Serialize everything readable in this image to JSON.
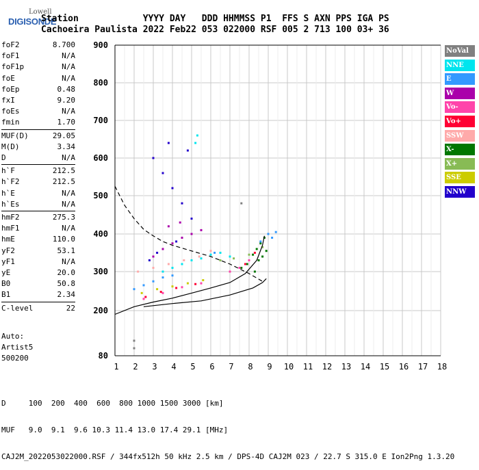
{
  "header": {
    "logo_top": "Lowell",
    "logo_bottom": "DIGISONDE",
    "line1": "Station            YYYY DAY   DDD HHMMSS P1  FFS S AXN PPS IGA PS",
    "line2": "Cachoeira Paulista 2022 Feb22 053 022000 RSF 005 2 713 100 03+ 36"
  },
  "params": {
    "group1": [
      {
        "label": "foF2",
        "value": "8.700"
      },
      {
        "label": "foF1",
        "value": "N/A"
      },
      {
        "label": "foF1p",
        "value": "N/A"
      },
      {
        "label": "foE",
        "value": "N/A"
      },
      {
        "label": "foEp",
        "value": "0.48"
      },
      {
        "label": "fxI",
        "value": "9.20"
      },
      {
        "label": "foEs",
        "value": "N/A"
      },
      {
        "label": "fmin",
        "value": "1.70"
      }
    ],
    "group2": [
      {
        "label": "MUF(D)",
        "value": "29.05"
      },
      {
        "label": "M(D)",
        "value": "3.34"
      },
      {
        "label": "D",
        "value": "N/A"
      }
    ],
    "group3": [
      {
        "label": "h`F",
        "value": "212.5"
      },
      {
        "label": "h`F2",
        "value": "212.5"
      },
      {
        "label": "h`E",
        "value": "N/A"
      },
      {
        "label": "h`Es",
        "value": "N/A"
      }
    ],
    "group4": [
      {
        "label": "hmF2",
        "value": "275.3"
      },
      {
        "label": "hmF1",
        "value": "N/A"
      },
      {
        "label": "hmE",
        "value": "110.0"
      },
      {
        "label": "yF2",
        "value": "53.1"
      },
      {
        "label": "yF1",
        "value": "N/A"
      },
      {
        "label": "yE",
        "value": "20.0"
      },
      {
        "label": "B0",
        "value": "50.8"
      },
      {
        "label": "B1",
        "value": "2.34"
      }
    ],
    "group5": [
      {
        "label": "C-level",
        "value": "22"
      }
    ]
  },
  "auto": {
    "line1": "Auto:",
    "line2": "Artist5",
    "line3": "500200"
  },
  "footer": {
    "line1": "D     100  200  400  600  800 1000 1500 3000 [km]",
    "line2": "MUF   9.0  9.1  9.6 10.3 11.4 13.0 17.4 29.1 [MHz]",
    "line3": "CAJ2M_2022053022000.RSF / 344fx512h 50 kHz 2.5 km / DPS-4D CAJ2M 023 / 22.7 S 315.0 E Ion2Png 1.3.20"
  },
  "legend": [
    {
      "label": "NoVal",
      "color": "#808080"
    },
    {
      "label": "NNE",
      "color": "#00e5ee"
    },
    {
      "label": "E",
      "color": "#3399ff"
    },
    {
      "label": "W",
      "color": "#aa00aa"
    },
    {
      "label": "Vo-",
      "color": "#ff44aa"
    },
    {
      "label": "Vo+",
      "color": "#ff0033"
    },
    {
      "label": "SSW",
      "color": "#ffaaaa"
    },
    {
      "label": "X-",
      "color": "#007700"
    },
    {
      "label": "X+",
      "color": "#88bb55"
    },
    {
      "label": "SSE",
      "color": "#cccc00"
    },
    {
      "label": "NNW",
      "color": "#2200cc"
    }
  ],
  "chart_data": {
    "type": "scatter",
    "xlim": [
      1,
      18
    ],
    "ylim": [
      80,
      900
    ],
    "x_ticks": [
      1,
      2,
      3,
      4,
      5,
      6,
      7,
      8,
      9,
      10,
      11,
      12,
      13,
      14,
      15,
      16,
      17,
      18
    ],
    "y_ticks": [
      80,
      200,
      300,
      400,
      500,
      600,
      700,
      800,
      900
    ],
    "grid": true,
    "legend_position": "right",
    "series": [
      {
        "name": "X-",
        "color": "#007700",
        "points": [
          [
            7.6,
            310
          ],
          [
            7.9,
            320
          ],
          [
            8.2,
            345
          ],
          [
            8.4,
            360
          ],
          [
            8.6,
            375
          ],
          [
            8.8,
            390
          ],
          [
            8.5,
            330
          ],
          [
            8.7,
            340
          ],
          [
            8.9,
            355
          ],
          [
            8.3,
            300
          ]
        ]
      },
      {
        "name": "NNE",
        "color": "#00e5ee",
        "points": [
          [
            3.5,
            300
          ],
          [
            4.0,
            310
          ],
          [
            4.5,
            320
          ],
          [
            5.0,
            330
          ],
          [
            5.5,
            335
          ],
          [
            6.0,
            345
          ],
          [
            6.5,
            350
          ],
          [
            7.0,
            340
          ],
          [
            5.2,
            640
          ],
          [
            5.3,
            660
          ]
        ]
      },
      {
        "name": "E",
        "color": "#3399ff",
        "points": [
          [
            2.0,
            255
          ],
          [
            2.5,
            265
          ],
          [
            3.0,
            275
          ],
          [
            3.5,
            285
          ],
          [
            4.0,
            290
          ],
          [
            6.2,
            350
          ],
          [
            8.6,
            380
          ],
          [
            9.0,
            400
          ],
          [
            9.2,
            390
          ],
          [
            9.4,
            405
          ]
        ]
      },
      {
        "name": "NNW",
        "color": "#2200cc",
        "points": [
          [
            3.0,
            600
          ],
          [
            3.5,
            560
          ],
          [
            4.0,
            520
          ],
          [
            4.5,
            480
          ],
          [
            5.0,
            440
          ],
          [
            3.2,
            350
          ],
          [
            4.2,
            380
          ],
          [
            4.8,
            620
          ],
          [
            2.8,
            330
          ],
          [
            3.8,
            640
          ]
        ]
      },
      {
        "name": "W",
        "color": "#aa00aa",
        "points": [
          [
            3.0,
            340
          ],
          [
            3.5,
            360
          ],
          [
            4.0,
            375
          ],
          [
            4.5,
            390
          ],
          [
            5.0,
            400
          ],
          [
            5.5,
            410
          ],
          [
            3.8,
            420
          ],
          [
            4.4,
            430
          ]
        ]
      },
      {
        "name": "Vo-",
        "color": "#ff44aa",
        "points": [
          [
            2.5,
            230
          ],
          [
            3.5,
            245
          ],
          [
            4.5,
            260
          ],
          [
            5.5,
            270
          ],
          [
            7.0,
            300
          ],
          [
            7.5,
            310
          ],
          [
            8.0,
            330
          ]
        ]
      },
      {
        "name": "Vo+",
        "color": "#ff0033",
        "points": [
          [
            2.6,
            235
          ],
          [
            3.4,
            248
          ],
          [
            4.2,
            258
          ],
          [
            5.2,
            268
          ],
          [
            7.8,
            320
          ],
          [
            8.3,
            350
          ]
        ]
      },
      {
        "name": "SSW",
        "color": "#ffaaaa",
        "points": [
          [
            2.2,
            300
          ],
          [
            3.0,
            310
          ],
          [
            3.8,
            320
          ],
          [
            4.6,
            330
          ],
          [
            5.4,
            340
          ],
          [
            6.0,
            355
          ]
        ]
      },
      {
        "name": "SSE",
        "color": "#cccc00",
        "points": [
          [
            2.4,
            245
          ],
          [
            3.2,
            255
          ],
          [
            4.0,
            262
          ],
          [
            4.8,
            270
          ],
          [
            5.6,
            278
          ]
        ]
      },
      {
        "name": "X+",
        "color": "#88bb55",
        "points": [
          [
            6.5,
            330
          ],
          [
            7.2,
            335
          ],
          [
            8.0,
            345
          ],
          [
            8.7,
            365
          ]
        ]
      },
      {
        "name": "NoVal",
        "color": "#808080",
        "points": [
          [
            2.0,
            100
          ],
          [
            2.0,
            120
          ],
          [
            7.6,
            480
          ]
        ]
      }
    ],
    "curves": [
      {
        "name": "trace",
        "style": "solid",
        "points": [
          [
            1.0,
            190
          ],
          [
            2.0,
            210
          ],
          [
            3.0,
            222
          ],
          [
            4.0,
            232
          ],
          [
            5.0,
            245
          ],
          [
            6.0,
            258
          ],
          [
            7.0,
            272
          ],
          [
            7.8,
            295
          ],
          [
            8.4,
            330
          ],
          [
            8.7,
            370
          ],
          [
            8.8,
            395
          ]
        ]
      },
      {
        "name": "model",
        "style": "solid",
        "points": [
          [
            2.5,
            210
          ],
          [
            4.0,
            218
          ],
          [
            5.5,
            225
          ],
          [
            7.0,
            240
          ],
          [
            8.2,
            258
          ],
          [
            8.7,
            272
          ],
          [
            8.9,
            282
          ]
        ]
      },
      {
        "name": "profile",
        "style": "dashed",
        "points": [
          [
            1.0,
            525
          ],
          [
            1.5,
            475
          ],
          [
            2.0,
            440
          ],
          [
            2.5,
            412
          ],
          [
            3.0,
            395
          ],
          [
            3.5,
            380
          ],
          [
            4.0,
            370
          ],
          [
            5.0,
            355
          ],
          [
            6.0,
            340
          ],
          [
            7.0,
            320
          ],
          [
            8.0,
            295
          ],
          [
            8.7,
            275
          ]
        ]
      }
    ]
  }
}
